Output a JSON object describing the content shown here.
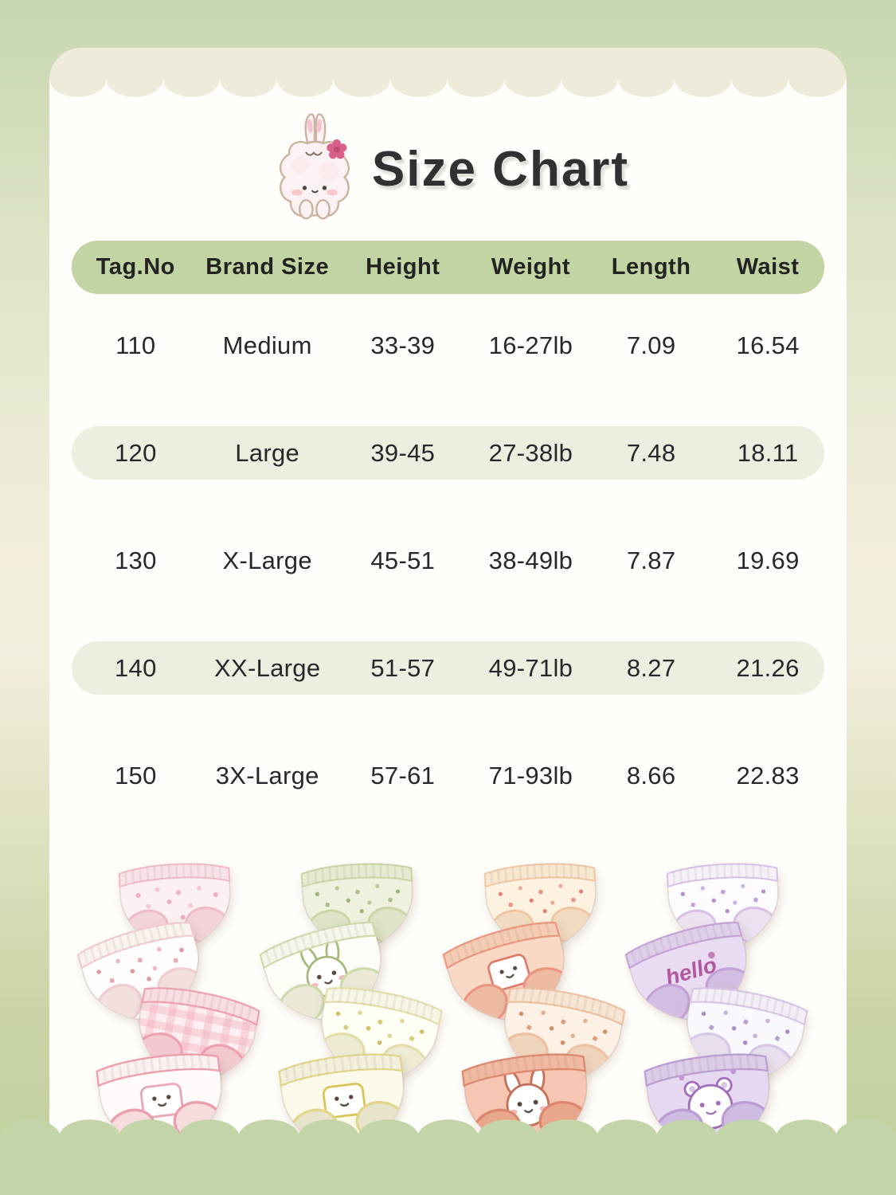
{
  "header": {
    "title": "Size Chart",
    "mascot": "bunny-with-flower"
  },
  "chart_data": {
    "type": "table",
    "title": "Size Chart",
    "columns": [
      "Tag.No",
      "Brand Size",
      "Height",
      "Weight",
      "Length",
      "Waist"
    ],
    "rows": [
      [
        "110",
        "Medium",
        "33-39",
        "16-27lb",
        "7.09",
        "16.54"
      ],
      [
        "120",
        "Large",
        "39-45",
        "27-38lb",
        "7.48",
        "18.11"
      ],
      [
        "130",
        "X-Large",
        "45-51",
        "38-49lb",
        "7.87",
        "19.69"
      ],
      [
        "140",
        "XX-Large",
        "51-57",
        "49-71lb",
        "8.27",
        "21.26"
      ],
      [
        "150",
        "3X-Large",
        "57-61",
        "71-93lb",
        "8.66",
        "22.83"
      ]
    ],
    "highlighted_rows": [
      "120",
      "140"
    ]
  },
  "palette": {
    "background_green_top": "#c7d6af",
    "background_cream_mid": "#f2eedd",
    "bottom_green": "#c3d5a8",
    "card_white": "#fffefa",
    "card_cream_band": "#eeebdb",
    "table_header_green": "#c3d4a4",
    "table_row_alt": "#ecefdf",
    "title_color": "#323031",
    "mascot_flower_pink": "#d9608a"
  },
  "products": {
    "groups": [
      {
        "name": "pink",
        "items": [
          {
            "fabric": "#fdf0f2",
            "band": "#f9e2e7",
            "inner": "#f3d3da",
            "trim": "#eebac6",
            "motif": "dots",
            "motif_color": "#eba9bb",
            "print": "pink-dots-bunny-print"
          },
          {
            "fabric": "#fffdfb",
            "band": "#faf2ee",
            "inner": "#f2dfde",
            "trim": "#efccd2",
            "motif": "sprinkle",
            "motif_color": "#dd8493",
            "print": "floral-candy-print"
          },
          {
            "fabric": "#fdeef1",
            "band": "#f8dde3",
            "inner": "#f2c9d1",
            "trim": "#ee9fb0",
            "motif": "check",
            "motif_color": "#f2b3c0",
            "print": "pink-gingham-print"
          },
          {
            "fabric": "#fffbfa",
            "band": "#fdf0f0",
            "inner": "#f6dcdc",
            "trim": "#ec9cab",
            "motif": "patch",
            "motif_color": "#e8a7b6",
            "print": "bunny-patch"
          }
        ]
      },
      {
        "name": "green",
        "items": [
          {
            "fabric": "#eef1de",
            "band": "#e4ebd0",
            "inner": "#dce3c6",
            "trim": "#c8d5a6",
            "motif": "sprinkle",
            "motif_color": "#8fa868",
            "print": "green-doodle-print"
          },
          {
            "fabric": "#fdfdf7",
            "band": "#f5f6ea",
            "inner": "#ebe8d6",
            "trim": "#cddaab",
            "motif": "face",
            "motif_color": "#a3b877",
            "print": "bunny-face"
          },
          {
            "fabric": "#fffef4",
            "band": "#f7f6e6",
            "inner": "#eeebd4",
            "trim": "#e2dda9",
            "motif": "sprinkle",
            "motif_color": "#c3b54e",
            "print": "tulip-print"
          },
          {
            "fabric": "#fbf9ea",
            "band": "#f2f0dc",
            "inner": "#e8e4cb",
            "trim": "#e0d58a",
            "motif": "patch",
            "motif_color": "#d8c455",
            "print": "lemon-patch"
          }
        ]
      },
      {
        "name": "peach",
        "items": [
          {
            "fabric": "#fdf2e0",
            "band": "#f8e7cf",
            "inner": "#f1dabf",
            "trim": "#efc6a4",
            "motif": "sprinkle",
            "motif_color": "#dc6f63",
            "print": "strawberry-print"
          },
          {
            "fabric": "#f9d9c5",
            "band": "#f4ccb3",
            "inner": "#edbba1",
            "trim": "#eb9481",
            "motif": "patch",
            "motif_color": "#de7a6c",
            "print": "strawberry-patch"
          },
          {
            "fabric": "#fdf1e6",
            "band": "#f7e4d3",
            "inner": "#efd4bc",
            "trim": "#ecc0a0",
            "motif": "sprinkle",
            "motif_color": "#c77e54",
            "print": "bear-cherry-print"
          },
          {
            "fabric": "#f6c6b2",
            "band": "#f1b8a1",
            "inner": "#e8a78c",
            "trim": "#db876f",
            "motif": "face",
            "motif_color": "#c06f58",
            "print": "bunny-face"
          }
        ]
      },
      {
        "name": "purple",
        "items": [
          {
            "fabric": "#fdfbfe",
            "band": "#f5f0f8",
            "inner": "#ebe1f0",
            "trim": "#d6c1e3",
            "motif": "sprinkle",
            "motif_color": "#a678c4",
            "print": "butterfly-print"
          },
          {
            "fabric": "#e9dcf2",
            "band": "#e0cfeb",
            "inner": "#d3bde2",
            "trim": "#c3a1d6",
            "motif": "word",
            "word": "hello",
            "motif_color": "#b0589e",
            "print": "hello-script"
          },
          {
            "fabric": "#fbf8fd",
            "band": "#f3edf7",
            "inner": "#e8dfee",
            "trim": "#d7c6e4",
            "motif": "sprinkle",
            "motif_color": "#9a7cb8",
            "print": "bear-print"
          },
          {
            "fabric": "#e6d8f1",
            "band": "#dccbe9",
            "inner": "#cfbae1",
            "trim": "#bb9cd2",
            "motif": "bear",
            "motif_color": "#a06cb8",
            "print": "big-bear-print"
          }
        ]
      }
    ]
  }
}
